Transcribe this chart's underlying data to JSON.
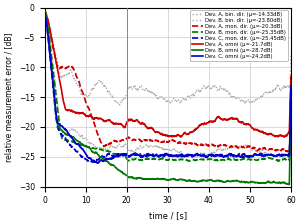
{
  "xlabel": "time / [s]",
  "ylabel": "relative measurement error / [dB]",
  "xlim": [
    0,
    60
  ],
  "ylim": [
    -30,
    0
  ],
  "yticks": [
    0,
    -5,
    -10,
    -15,
    -20,
    -25,
    -30
  ],
  "xticks": [
    0,
    10,
    20,
    30,
    40,
    50,
    60
  ],
  "vline_x": 20,
  "legend": [
    {
      "label": "Dev. A, omni (μ=-21.7dB)",
      "color": "#cc0000",
      "ls": "solid",
      "lw": 1.2
    },
    {
      "label": "Dev. B, omni (μ=-28.7dB)",
      "color": "#007700",
      "ls": "solid",
      "lw": 1.2
    },
    {
      "label": "Dev. C, omni (μ=-24.2dB)",
      "color": "#0000cc",
      "ls": "solid",
      "lw": 1.2
    },
    {
      "label": "Dev. A, mon. dir. (μ=-20.3dB)",
      "color": "#cc0000",
      "ls": "dashed",
      "lw": 1.2
    },
    {
      "label": "Dev. B, mon. dir. (μ=-25.35dB)",
      "color": "#007700",
      "ls": "dashed",
      "lw": 1.2
    },
    {
      "label": "Dev. C, mon. dir. (μ=-25.45dB)",
      "color": "#0000cc",
      "ls": "dashed",
      "lw": 1.2
    },
    {
      "label": "Dev. A, bin. dir. (μ=-14.33dB)",
      "color": "#aaaaaa",
      "ls": "dotted",
      "lw": 1.0
    },
    {
      "label": "Dev. B, bin. dir. (μ=-23.80dB)",
      "color": "#aaaaaa",
      "ls": "dotted",
      "lw": 1.0
    }
  ],
  "bg_color": "#ffffff",
  "grid_color": "#cccccc"
}
